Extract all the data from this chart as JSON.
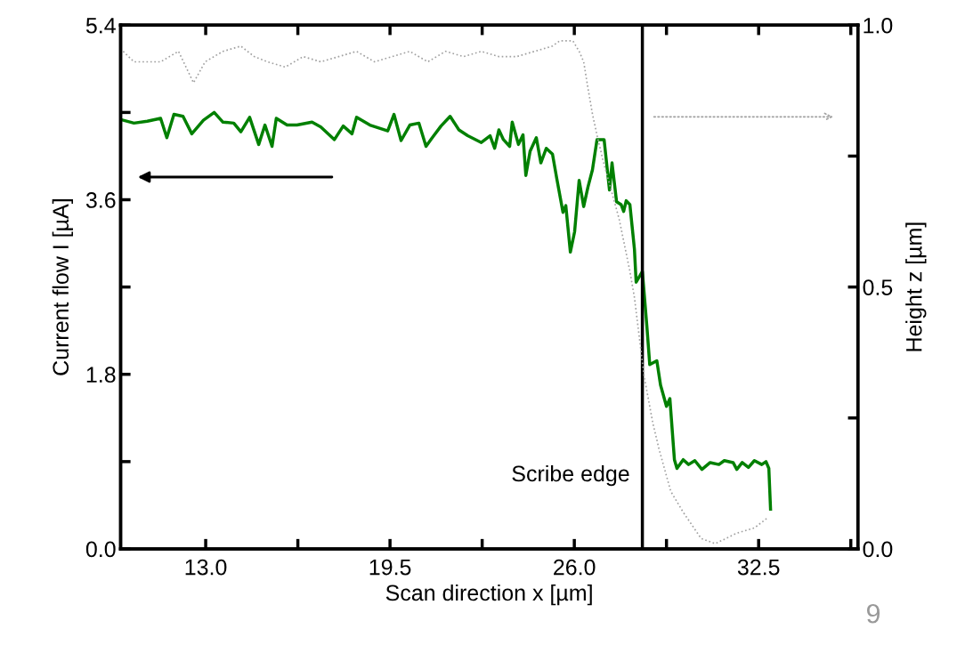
{
  "chart_data": {
    "type": "line",
    "xlabel": "Scan direction x [µm]",
    "ylabel": "Current flow I [µA]",
    "y2label": "Height z [µm]",
    "xlim": [
      10,
      36
    ],
    "xticks": [
      {
        "value": 13,
        "label": "13.0"
      },
      {
        "value": 16.25,
        "label": null
      },
      {
        "value": 19.5,
        "label": "19.5"
      },
      {
        "value": 22.75,
        "label": null
      },
      {
        "value": 26,
        "label": "26.0"
      },
      {
        "value": 29.25,
        "label": null
      },
      {
        "value": 32.5,
        "label": "32.5"
      },
      {
        "value": 35.75,
        "label": null
      }
    ],
    "ylim": [
      0,
      5.4
    ],
    "yticks": [
      {
        "value": 0,
        "label": "0.0"
      },
      {
        "value": 0.9,
        "label": null
      },
      {
        "value": 1.8,
        "label": "1.8"
      },
      {
        "value": 2.7,
        "label": null
      },
      {
        "value": 3.6,
        "label": "3.6"
      },
      {
        "value": 4.5,
        "label": null
      },
      {
        "value": 5.4,
        "label": "5.4"
      }
    ],
    "y2lim": [
      0,
      1
    ],
    "y2ticks": [
      {
        "value": 0,
        "label": "0.0"
      },
      {
        "value": 0.25,
        "label": null
      },
      {
        "value": 0.5,
        "label": "0.5"
      },
      {
        "value": 0.75,
        "label": null
      },
      {
        "value": 1,
        "label": "1.0"
      }
    ],
    "grid": false,
    "legend": false,
    "ref_lines": [
      {
        "axis": "x",
        "value": 28.4,
        "label": "Scribe edge",
        "color": "#000000",
        "line_style": "solid"
      }
    ],
    "annotations": [
      "9"
    ],
    "series": [
      {
        "color": "#008000",
        "line_style": "solid",
        "x": [
          10.09,
          10.47,
          10.94,
          11.41,
          11.63,
          11.88,
          12.2,
          12.51,
          12.92,
          13.3,
          13.61,
          13.99,
          14.24,
          14.55,
          14.87,
          15.09,
          15.34,
          15.49,
          15.87,
          16.22,
          16.75,
          17.06,
          17.54,
          17.85,
          18.16,
          18.32,
          18.79,
          19.42,
          19.64,
          19.89,
          20.2,
          20.52,
          20.77,
          20.99,
          21.3,
          21.62,
          21.93,
          22.24,
          22.72,
          23.03,
          23.19,
          23.34,
          23.5,
          23.72,
          23.81,
          24.03,
          24.19,
          24.29,
          24.44,
          24.66,
          24.82,
          25.01,
          25.23,
          25.38,
          25.6,
          25.7,
          25.86,
          26.01,
          26.17,
          26.33,
          26.48,
          26.64,
          26.8,
          27.05,
          27.24,
          27.33,
          27.49,
          27.65,
          27.74,
          27.83,
          27.96,
          28.12,
          28.18,
          28.4,
          28.56,
          28.66,
          28.91,
          29.04,
          29.25,
          29.37,
          29.53,
          29.62,
          29.84,
          30.03,
          30.25,
          30.5,
          30.79,
          31.1,
          31.29,
          31.6,
          31.73,
          31.92,
          32.14,
          32.35,
          32.61,
          32.76,
          32.86,
          32.92
        ],
        "values": [
          4.42,
          4.39,
          4.41,
          4.44,
          4.24,
          4.48,
          4.46,
          4.28,
          4.42,
          4.5,
          4.4,
          4.39,
          4.3,
          4.45,
          4.17,
          4.37,
          4.15,
          4.44,
          4.37,
          4.37,
          4.4,
          4.35,
          4.22,
          4.36,
          4.28,
          4.45,
          4.37,
          4.31,
          4.48,
          4.21,
          4.37,
          4.39,
          4.15,
          4.24,
          4.36,
          4.46,
          4.32,
          4.26,
          4.19,
          4.26,
          4.13,
          4.32,
          4.22,
          4.15,
          4.4,
          4.17,
          4.27,
          3.85,
          4.1,
          4.24,
          3.98,
          4.13,
          4.07,
          3.82,
          3.47,
          3.54,
          3.06,
          3.27,
          3.8,
          3.53,
          3.73,
          3.91,
          4.22,
          4.22,
          3.7,
          3.98,
          3.58,
          3.55,
          3.48,
          3.59,
          3.55,
          3.09,
          2.75,
          2.86,
          2.29,
          1.9,
          1.94,
          1.69,
          1.47,
          1.55,
          0.92,
          0.83,
          0.92,
          0.87,
          0.91,
          0.82,
          0.89,
          0.87,
          0.91,
          0.89,
          0.82,
          0.89,
          0.84,
          0.91,
          0.87,
          0.9,
          0.83,
          0.41
        ]
      },
      {
        "color": "#a0a0a0",
        "line_style": "dotted",
        "axis": "y2",
        "x": [
          10.09,
          10.47,
          10.94,
          11.41,
          12.04,
          12.57,
          12.98,
          13.61,
          14.24,
          14.71,
          15.18,
          15.81,
          16.44,
          17.06,
          17.69,
          18.32,
          18.95,
          19.58,
          20.2,
          20.83,
          21.46,
          22.09,
          22.72,
          23.34,
          23.97,
          24.6,
          25.23,
          25.48,
          25.95,
          26.17,
          26.33,
          26.48,
          26.64,
          26.8,
          27.02,
          27.58,
          27.96,
          28.12,
          28.46,
          28.77,
          28.99,
          29.4,
          29.84,
          30.47,
          30.97,
          31.73,
          32.35,
          32.83
        ],
        "values": [
          0.95,
          0.93,
          0.93,
          0.93,
          0.95,
          0.89,
          0.93,
          0.95,
          0.96,
          0.94,
          0.93,
          0.92,
          0.94,
          0.93,
          0.94,
          0.95,
          0.93,
          0.94,
          0.95,
          0.93,
          0.95,
          0.94,
          0.95,
          0.94,
          0.94,
          0.95,
          0.96,
          0.97,
          0.97,
          0.95,
          0.93,
          0.88,
          0.83,
          0.79,
          0.74,
          0.63,
          0.53,
          0.48,
          0.33,
          0.24,
          0.19,
          0.11,
          0.07,
          0.02,
          0.01,
          0.03,
          0.04,
          0.06
        ]
      }
    ]
  }
}
